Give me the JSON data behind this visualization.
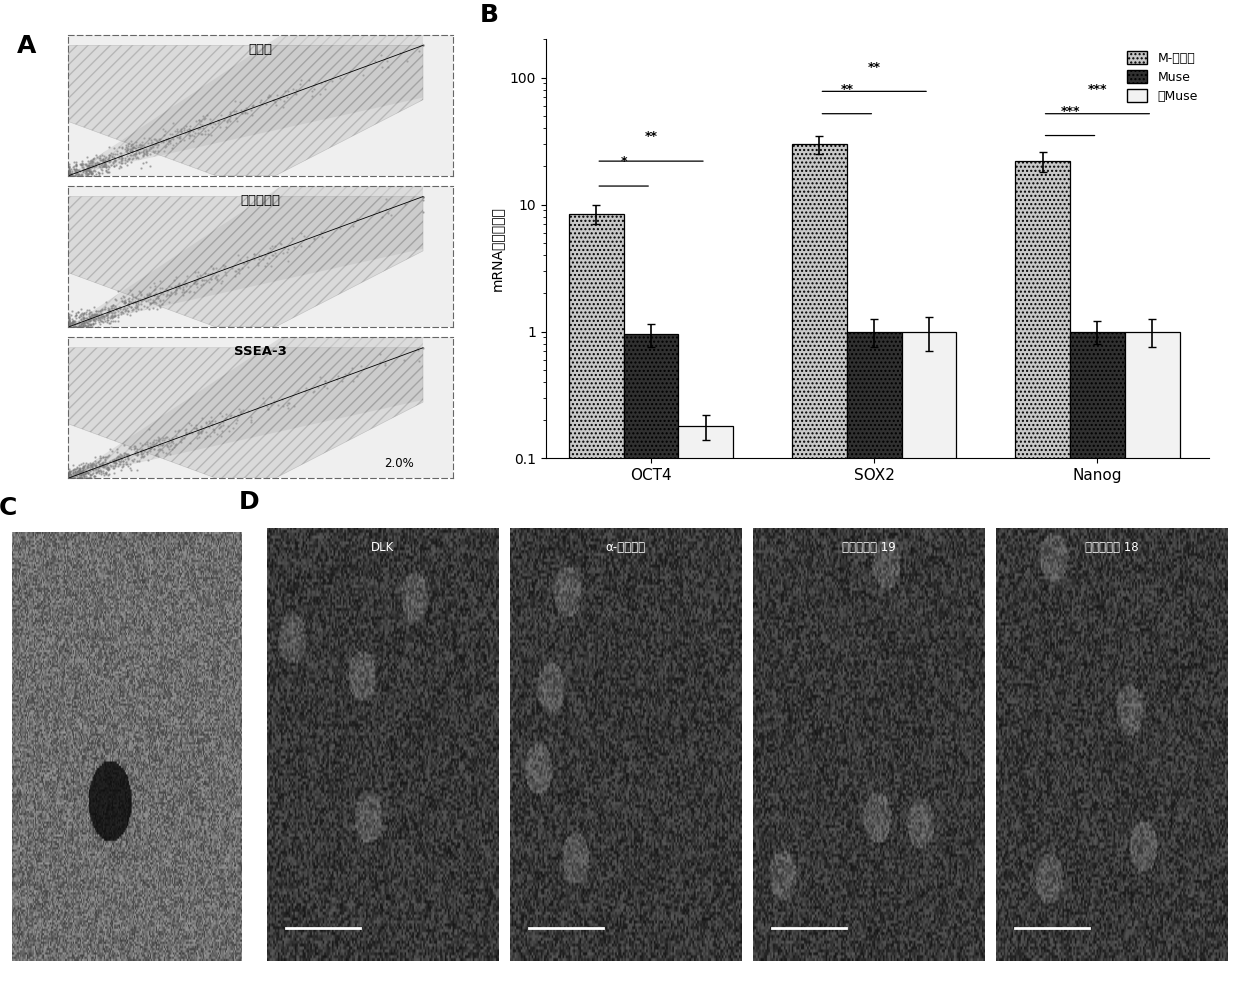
{
  "title_A": "A",
  "title_B": "B",
  "title_C": "C",
  "title_D": "D",
  "panel_A_labels": [
    "无染色",
    "仅二次抗体",
    "SSEA-3"
  ],
  "panel_A_percent": "2.0%",
  "legend_labels": [
    "M-细胞群",
    "Muse",
    "非Muse"
  ],
  "bar_groups": [
    "OCT4",
    "SOX2",
    "Nanog"
  ],
  "bar_M": [
    8.5,
    30.0,
    22.0
  ],
  "bar_Muse": [
    0.95,
    1.0,
    1.0
  ],
  "bar_nonMuse": [
    0.18,
    1.0,
    1.0
  ],
  "err_M": [
    1.5,
    5.0,
    4.0
  ],
  "err_Muse": [
    0.2,
    0.25,
    0.2
  ],
  "err_nonMuse": [
    0.04,
    0.3,
    0.25
  ],
  "ylabel_B": "mRNA的相对表达",
  "ymin": 0.1,
  "ymax": 200,
  "sig_oct4": [
    "*",
    "**"
  ],
  "sig_sox2": [
    "**",
    "**"
  ],
  "sig_nanog": [
    "***",
    "***"
  ],
  "panel_D_labels": [
    "DLK",
    "α-甲胎蛋白",
    "细胞角蛋白 19",
    "细胞角蛋白 18"
  ],
  "bg_color": "#ffffff",
  "bar_color_M": "#c8c8c8",
  "bar_color_Muse": "#303030",
  "bar_color_nonMuse": "#f2f2f2"
}
